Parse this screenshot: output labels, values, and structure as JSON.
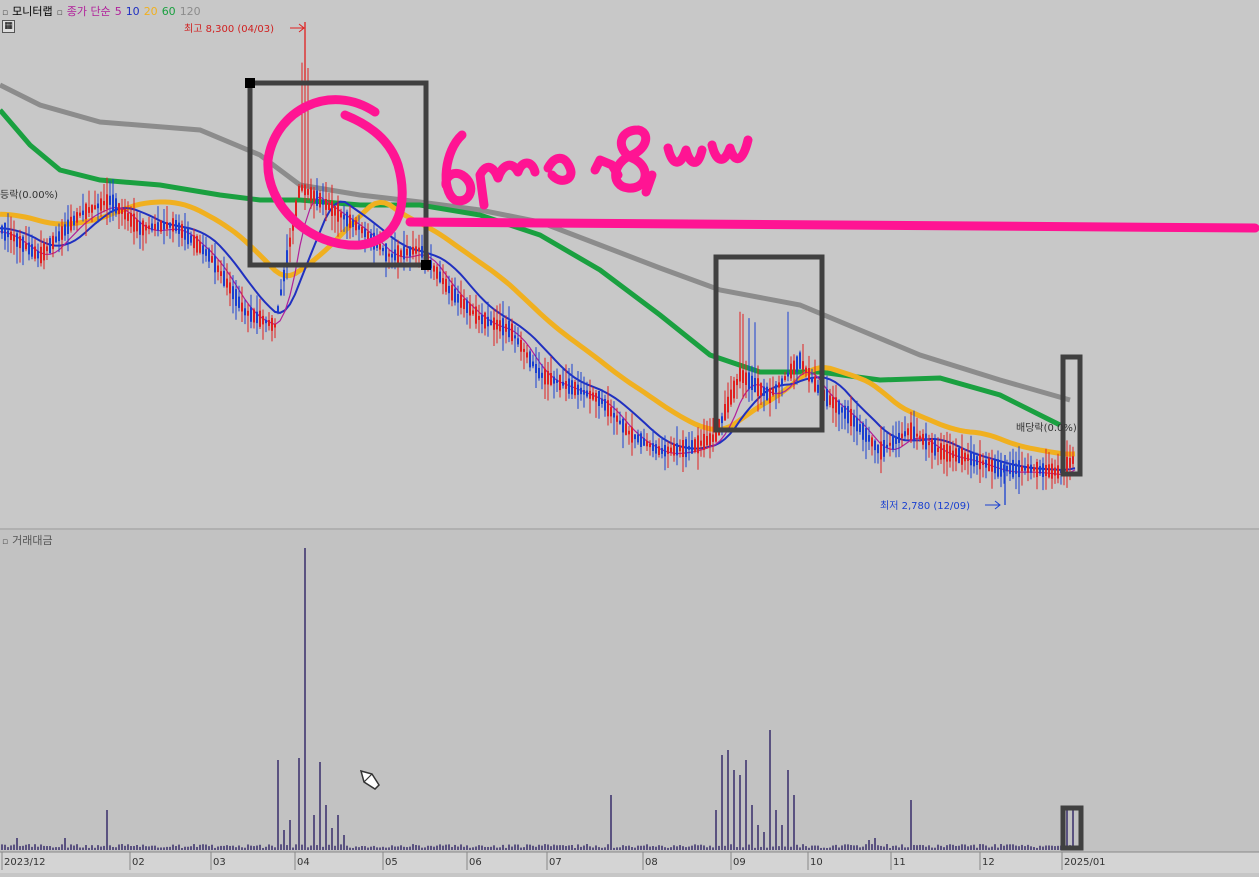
{
  "header": {
    "title": "모니터랩",
    "ma_label": "종가 단순",
    "ma_periods": [
      "5",
      "10",
      "20",
      "60",
      "120"
    ],
    "ma_colors": [
      "#b0209a",
      "#2030c0",
      "#f0b020",
      "#1aa040",
      "#8c8c8c"
    ]
  },
  "volume_panel": {
    "title": "거래대금"
  },
  "annotations": {
    "high_label": "최고 8,300 (04/03)",
    "low_label": "최저 2,780 (12/09)",
    "left_label": "등락(0.00%)",
    "dividend_label": "배당락(0.0%)",
    "handwritten": "6,000~8,000"
  },
  "chart_data": {
    "type": "candlestick",
    "period_labels": [
      "2023/12",
      "02",
      "03",
      "04",
      "05",
      "06",
      "07",
      "08",
      "09",
      "10",
      "11",
      "12",
      "2025/01"
    ],
    "price_range": [
      2000,
      8600
    ],
    "high": {
      "value": 8300,
      "date": "04/03"
    },
    "low": {
      "value": 2780,
      "date": "12/09"
    },
    "colors": {
      "up": "#e02020",
      "down": "#1a40d0",
      "volume": "#5a5280",
      "highlight": "#ff1493",
      "box": "#404040"
    }
  }
}
